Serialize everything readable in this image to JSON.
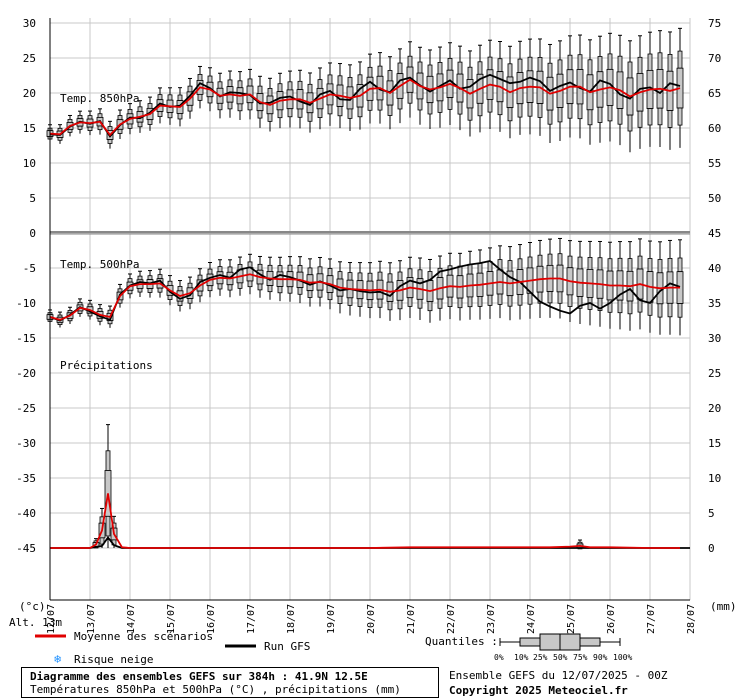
{
  "chart_data": {
    "type": "boxplot",
    "title": "Diagramme des ensembles GEFS sur 384h : 41.9N 12.5E",
    "subtitle": "Températures 850hPa et 500hPa (°C) , précipitations (mm)",
    "run_label": "Ensemble GEFS du 12/07/2025 - 00Z",
    "copyright": "Copyright 2025 Meteociel.fr",
    "altitude": "Alt. 13m",
    "left_unit": "(°c)",
    "right_unit": "(mm)",
    "x_dates": [
      "12/07",
      "13/07",
      "14/07",
      "15/07",
      "16/07",
      "17/07",
      "18/07",
      "19/07",
      "20/07",
      "21/07",
      "22/07",
      "23/07",
      "24/07",
      "25/07",
      "26/07",
      "27/07",
      "28/07"
    ],
    "left_axis_ticks": [
      30,
      25,
      20,
      15,
      10,
      5,
      0,
      -5,
      -10,
      -15,
      -20,
      -25,
      -30,
      -35,
      -40,
      -45
    ],
    "right_axis_ticks": [
      75,
      70,
      65,
      60,
      55,
      50,
      45,
      40,
      35,
      30,
      25,
      20,
      15,
      10,
      5,
      0
    ],
    "panels": [
      {
        "name": "Temp. 850hPa",
        "range": [
          0,
          30
        ],
        "mean": [
          [
            0,
            14.2
          ],
          [
            0.25,
            14.1
          ],
          [
            0.5,
            15.3
          ],
          [
            0.75,
            15.8
          ],
          [
            1,
            15.7
          ],
          [
            1.25,
            15.9
          ],
          [
            1.5,
            14.0
          ],
          [
            1.75,
            15.5
          ],
          [
            2,
            16.3
          ],
          [
            2.25,
            16.6
          ],
          [
            2.5,
            17.0
          ],
          [
            2.75,
            18.2
          ],
          [
            3,
            18.1
          ],
          [
            3.25,
            18.0
          ],
          [
            3.5,
            19.2
          ],
          [
            3.75,
            20.8
          ],
          [
            4,
            20.5
          ],
          [
            4.25,
            19.6
          ],
          [
            4.5,
            19.8
          ],
          [
            4.75,
            19.6
          ],
          [
            5,
            19.8
          ],
          [
            5.25,
            18.7
          ],
          [
            5.5,
            18.3
          ],
          [
            5.75,
            18.9
          ],
          [
            6,
            19.1
          ],
          [
            6.25,
            19.1
          ],
          [
            6.5,
            18.6
          ],
          [
            6.75,
            19.2
          ],
          [
            7,
            19.8
          ],
          [
            7.25,
            19.6
          ],
          [
            7.5,
            19.3
          ],
          [
            7.75,
            19.6
          ],
          [
            8,
            20.6
          ],
          [
            8.25,
            20.7
          ],
          [
            8.5,
            20.0
          ],
          [
            8.75,
            21.0
          ],
          [
            9,
            21.9
          ],
          [
            9.25,
            21.0
          ],
          [
            9.5,
            20.5
          ],
          [
            9.75,
            20.8
          ],
          [
            10,
            21.3
          ],
          [
            10.25,
            20.7
          ],
          [
            10.5,
            19.9
          ],
          [
            10.75,
            20.6
          ],
          [
            11,
            21.2
          ],
          [
            11.25,
            20.9
          ],
          [
            11.5,
            20.1
          ],
          [
            11.75,
            20.7
          ],
          [
            12,
            20.9
          ],
          [
            12.25,
            20.8
          ],
          [
            12.5,
            19.9
          ],
          [
            12.75,
            20.3
          ],
          [
            13,
            20.9
          ],
          [
            13.25,
            20.9
          ],
          [
            13.5,
            20.1
          ],
          [
            13.75,
            20.5
          ],
          [
            14,
            20.8
          ],
          [
            14.25,
            20.4
          ],
          [
            14.5,
            19.5
          ],
          [
            14.75,
            20.1
          ],
          [
            15,
            20.5
          ],
          [
            15.25,
            20.6
          ],
          [
            15.5,
            20.3
          ],
          [
            15.75,
            20.7
          ]
        ],
        "gfs": [
          [
            0,
            14.1
          ],
          [
            0.25,
            14.0
          ],
          [
            0.5,
            15.2
          ],
          [
            0.75,
            15.9
          ],
          [
            1,
            15.6
          ],
          [
            1.25,
            16.0
          ],
          [
            1.5,
            13.8
          ],
          [
            1.75,
            15.4
          ],
          [
            2,
            16.5
          ],
          [
            2.25,
            16.4
          ],
          [
            2.5,
            17.2
          ],
          [
            2.75,
            18.5
          ],
          [
            3,
            18.0
          ],
          [
            3.25,
            18.2
          ],
          [
            3.5,
            19.6
          ],
          [
            3.75,
            21.4
          ],
          [
            4,
            20.7
          ],
          [
            4.25,
            19.5
          ],
          [
            4.5,
            20.1
          ],
          [
            4.75,
            20.0
          ],
          [
            5,
            19.7
          ],
          [
            5.25,
            18.5
          ],
          [
            5.5,
            18.6
          ],
          [
            5.75,
            19.3
          ],
          [
            6,
            19.5
          ],
          [
            6.25,
            18.8
          ],
          [
            6.5,
            18.3
          ],
          [
            6.75,
            19.8
          ],
          [
            7,
            20.3
          ],
          [
            7.25,
            19.1
          ],
          [
            7.5,
            19.0
          ],
          [
            7.75,
            20.6
          ],
          [
            8,
            21.6
          ],
          [
            8.25,
            20.5
          ],
          [
            8.5,
            20.1
          ],
          [
            8.75,
            21.8
          ],
          [
            9,
            22.2
          ],
          [
            9.25,
            21.1
          ],
          [
            9.5,
            20.2
          ],
          [
            9.75,
            21.0
          ],
          [
            10,
            21.8
          ],
          [
            10.25,
            20.6
          ],
          [
            10.5,
            20.9
          ],
          [
            10.75,
            22.0
          ],
          [
            11,
            22.6
          ],
          [
            11.25,
            22.0
          ],
          [
            11.5,
            21.4
          ],
          [
            11.75,
            21.6
          ],
          [
            12,
            22.2
          ],
          [
            12.25,
            21.7
          ],
          [
            12.5,
            20.3
          ],
          [
            12.75,
            21.0
          ],
          [
            13,
            21.5
          ],
          [
            13.25,
            20.7
          ],
          [
            13.5,
            20.2
          ],
          [
            13.75,
            21.8
          ],
          [
            14,
            21.3
          ],
          [
            14.25,
            19.8
          ],
          [
            14.5,
            19.2
          ],
          [
            14.75,
            20.6
          ],
          [
            15,
            20.8
          ],
          [
            15.25,
            20.0
          ],
          [
            15.5,
            21.4
          ],
          [
            15.75,
            21.0
          ]
        ]
      },
      {
        "name": "Temp. 500hPa",
        "range": [
          -15,
          0
        ],
        "mean": [
          [
            0,
            -12.0
          ],
          [
            0.25,
            -12.4
          ],
          [
            0.5,
            -11.8
          ],
          [
            0.75,
            -10.7
          ],
          [
            1,
            -11.0
          ],
          [
            1.25,
            -11.7
          ],
          [
            1.5,
            -12.0
          ],
          [
            1.75,
            -9.0
          ],
          [
            2,
            -7.6
          ],
          [
            2.25,
            -7.3
          ],
          [
            2.5,
            -7.3
          ],
          [
            2.75,
            -7.2
          ],
          [
            3,
            -8.2
          ],
          [
            3.25,
            -9.0
          ],
          [
            3.5,
            -8.6
          ],
          [
            3.75,
            -7.5
          ],
          [
            4,
            -6.7
          ],
          [
            4.25,
            -6.4
          ],
          [
            4.5,
            -6.5
          ],
          [
            4.75,
            -6.2
          ],
          [
            5,
            -5.9
          ],
          [
            5.25,
            -6.3
          ],
          [
            5.5,
            -6.5
          ],
          [
            5.75,
            -6.6
          ],
          [
            6,
            -6.6
          ],
          [
            6.25,
            -6.7
          ],
          [
            6.5,
            -7.1
          ],
          [
            6.75,
            -7.0
          ],
          [
            7,
            -7.3
          ],
          [
            7.25,
            -7.8
          ],
          [
            7.5,
            -8.0
          ],
          [
            7.75,
            -8.1
          ],
          [
            8,
            -8.2
          ],
          [
            8.25,
            -8.1
          ],
          [
            8.5,
            -8.4
          ],
          [
            8.75,
            -8.2
          ],
          [
            9,
            -7.8
          ],
          [
            9.25,
            -8.0
          ],
          [
            9.5,
            -8.3
          ],
          [
            9.75,
            -7.9
          ],
          [
            10,
            -7.6
          ],
          [
            10.25,
            -7.7
          ],
          [
            10.5,
            -7.5
          ],
          [
            10.75,
            -7.4
          ],
          [
            11,
            -7.2
          ],
          [
            11.25,
            -7.0
          ],
          [
            11.5,
            -7.2
          ],
          [
            11.75,
            -7.0
          ],
          [
            12,
            -6.8
          ],
          [
            12.25,
            -6.6
          ],
          [
            12.5,
            -6.5
          ],
          [
            12.75,
            -6.5
          ],
          [
            13,
            -6.9
          ],
          [
            13.25,
            -7.1
          ],
          [
            13.5,
            -7.2
          ],
          [
            13.75,
            -7.3
          ],
          [
            14,
            -7.5
          ],
          [
            14.25,
            -7.5
          ],
          [
            14.5,
            -7.6
          ],
          [
            14.75,
            -7.3
          ],
          [
            15,
            -7.7
          ],
          [
            15.25,
            -7.9
          ],
          [
            15.5,
            -7.8
          ],
          [
            15.75,
            -7.8
          ]
        ],
        "gfs": [
          [
            0,
            -12.0
          ],
          [
            0.25,
            -12.5
          ],
          [
            0.5,
            -11.7
          ],
          [
            0.75,
            -10.6
          ],
          [
            1,
            -11.2
          ],
          [
            1.25,
            -11.9
          ],
          [
            1.5,
            -12.4
          ],
          [
            1.75,
            -8.8
          ],
          [
            2,
            -7.5
          ],
          [
            2.25,
            -7.0
          ],
          [
            2.5,
            -7.2
          ],
          [
            2.75,
            -6.8
          ],
          [
            3,
            -8.4
          ],
          [
            3.25,
            -9.4
          ],
          [
            3.5,
            -8.9
          ],
          [
            3.75,
            -7.0
          ],
          [
            4,
            -6.4
          ],
          [
            4.25,
            -6.0
          ],
          [
            4.5,
            -6.4
          ],
          [
            4.75,
            -5.2
          ],
          [
            5,
            -4.9
          ],
          [
            5.25,
            -5.9
          ],
          [
            5.5,
            -6.7
          ],
          [
            5.75,
            -6.0
          ],
          [
            6,
            -6.3
          ],
          [
            6.25,
            -6.8
          ],
          [
            6.5,
            -7.4
          ],
          [
            6.75,
            -6.9
          ],
          [
            7,
            -7.5
          ],
          [
            7.25,
            -8.2
          ],
          [
            7.5,
            -8.0
          ],
          [
            7.75,
            -8.3
          ],
          [
            8,
            -8.5
          ],
          [
            8.25,
            -8.4
          ],
          [
            8.5,
            -9.0
          ],
          [
            8.75,
            -7.6
          ],
          [
            9,
            -6.8
          ],
          [
            9.25,
            -7.2
          ],
          [
            9.5,
            -6.7
          ],
          [
            9.75,
            -5.5
          ],
          [
            10,
            -5.2
          ],
          [
            10.25,
            -4.8
          ],
          [
            10.5,
            -4.5
          ],
          [
            10.75,
            -4.3
          ],
          [
            11,
            -4.0
          ],
          [
            11.25,
            -5.2
          ],
          [
            11.5,
            -6.3
          ],
          [
            11.75,
            -7.0
          ],
          [
            12,
            -8.4
          ],
          [
            12.25,
            -9.8
          ],
          [
            12.5,
            -10.5
          ],
          [
            12.75,
            -11.1
          ],
          [
            13,
            -11.5
          ],
          [
            13.25,
            -10.4
          ],
          [
            13.5,
            -10.0
          ],
          [
            13.75,
            -10.8
          ],
          [
            14,
            -10.0
          ],
          [
            14.25,
            -8.8
          ],
          [
            14.5,
            -8.0
          ],
          [
            14.75,
            -9.6
          ],
          [
            15,
            -10.0
          ],
          [
            15.25,
            -8.3
          ],
          [
            15.5,
            -7.2
          ],
          [
            15.75,
            -7.7
          ]
        ]
      },
      {
        "name": "Précipitations",
        "range": [
          0,
          25
        ],
        "mean": [
          [
            0,
            0
          ],
          [
            1,
            0
          ],
          [
            1.15,
            0.5
          ],
          [
            1.3,
            2.5
          ],
          [
            1.45,
            7.8
          ],
          [
            1.6,
            2.0
          ],
          [
            1.8,
            0.1
          ],
          [
            2,
            0
          ],
          [
            2.25,
            0
          ],
          [
            3,
            0
          ],
          [
            4,
            0
          ],
          [
            5,
            0
          ],
          [
            6,
            0
          ],
          [
            7,
            0
          ],
          [
            8,
            0
          ],
          [
            9,
            0.1
          ],
          [
            10,
            0.1
          ],
          [
            10.5,
            0.1
          ],
          [
            11,
            0.1
          ],
          [
            11.5,
            0.1
          ],
          [
            12,
            0.1
          ],
          [
            12.5,
            0.1
          ],
          [
            13,
            0.2
          ],
          [
            13.25,
            0.3
          ],
          [
            13.5,
            0.1
          ],
          [
            14,
            0.1
          ],
          [
            15,
            0
          ],
          [
            15.75,
            0
          ]
        ],
        "gfs": [
          [
            0,
            0
          ],
          [
            1,
            0
          ],
          [
            1.3,
            0.3
          ],
          [
            1.45,
            1.5
          ],
          [
            1.6,
            0.4
          ],
          [
            1.8,
            0
          ],
          [
            2,
            0
          ],
          [
            16,
            0
          ]
        ]
      }
    ],
    "legend": {
      "mean_label": "Moyenne des scénarios",
      "gfs_label": "Run GFS",
      "snow_label": "Risque neige",
      "quantiles_label": "Quantiles :",
      "quantile_values": [
        "0%",
        "10%",
        "25%",
        "50%",
        "75%",
        "90%",
        "100%"
      ]
    },
    "colors": {
      "mean": "#e00000",
      "gfs": "#000000",
      "box": "#c8c8c8",
      "grid": "#c8c8c8"
    }
  }
}
